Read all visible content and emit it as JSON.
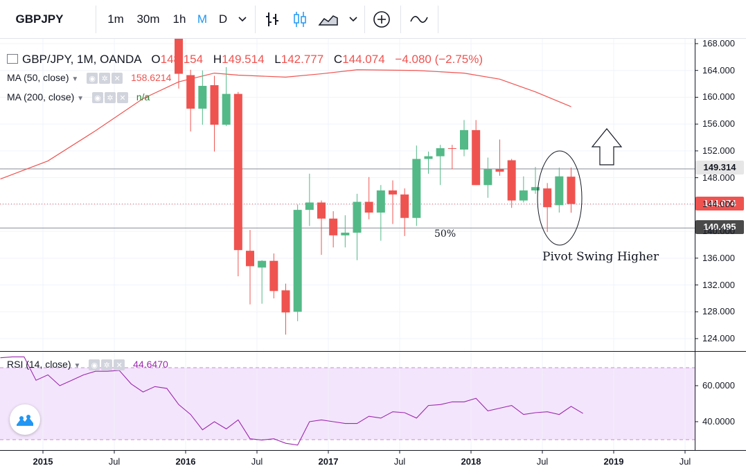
{
  "toolbar": {
    "symbol": "GBPJPY",
    "intervals": [
      "1m",
      "30m",
      "1h",
      "M",
      "D"
    ],
    "active_interval": "M"
  },
  "legend": {
    "title": "GBP/JPY, 1M, OANDA",
    "o_label": "O",
    "o_value": "148.154",
    "h_label": "H",
    "h_value": "149.514",
    "l_label": "L",
    "l_value": "142.777",
    "c_label": "C",
    "c_value": "144.074",
    "change": "−4.080 (−2.75%)",
    "ma50_label": "MA (50, close)",
    "ma50_value": "158.6214",
    "ma200_label": "MA (200, close)",
    "ma200_value": "n/a",
    "rsi_label": "RSI (14, close)",
    "rsi_value": "44.6470"
  },
  "price_labels": {
    "upper": "149.314",
    "current": "144.074",
    "lower": "140.495"
  },
  "annotations": {
    "fifty": "50%",
    "pivot": "Pivot Swing Higher"
  },
  "colors": {
    "up": "#26a69a",
    "up_fill": "#53b987",
    "down": "#ef5350",
    "ma50": "#ef5350",
    "rsi_line": "#9c27b0",
    "rsi_band": "#f3e5fb",
    "accent": "#2196f3"
  },
  "chart_data": {
    "type": "candlestick",
    "symbol": "GBP/JPY",
    "interval": "1M",
    "y_range": [
      122,
      169
    ],
    "price_ticks": [
      "168.000",
      "164.000",
      "160.000",
      "156.000",
      "152.000",
      "148.000",
      "144.000",
      "140.000",
      "136.000",
      "132.000",
      "128.000",
      "124.000"
    ],
    "x_tick_labels": [
      "2015",
      "Jul",
      "2016",
      "Jul",
      "2017",
      "Jul",
      "2018",
      "Jul",
      "2019",
      "Jul"
    ],
    "candles": [
      {
        "date": "2016-01",
        "o": 171.9,
        "h": 176.0,
        "l": 161.3,
        "c": 163.5
      },
      {
        "date": "2016-02",
        "o": 163.3,
        "h": 164.1,
        "l": 154.9,
        "c": 158.3
      },
      {
        "date": "2016-03",
        "o": 158.3,
        "h": 164.0,
        "l": 155.9,
        "c": 161.7
      },
      {
        "date": "2016-04",
        "o": 161.8,
        "h": 163.2,
        "l": 151.9,
        "c": 155.9
      },
      {
        "date": "2016-05",
        "o": 155.9,
        "h": 164.5,
        "l": 155.7,
        "c": 160.5
      },
      {
        "date": "2016-06",
        "o": 160.5,
        "h": 160.8,
        "l": 133.3,
        "c": 137.2
      },
      {
        "date": "2016-07",
        "o": 137.1,
        "h": 140.2,
        "l": 129.1,
        "c": 134.8
      },
      {
        "date": "2016-08",
        "o": 134.6,
        "h": 135.7,
        "l": 129.2,
        "c": 135.6
      },
      {
        "date": "2016-09",
        "o": 135.6,
        "h": 136.7,
        "l": 130.0,
        "c": 131.1
      },
      {
        "date": "2016-10",
        "o": 131.2,
        "h": 132.2,
        "l": 124.6,
        "c": 127.9
      },
      {
        "date": "2016-11",
        "o": 128.0,
        "h": 144.0,
        "l": 126.6,
        "c": 143.2
      },
      {
        "date": "2016-12",
        "o": 143.2,
        "h": 148.6,
        "l": 140.8,
        "c": 144.3
      },
      {
        "date": "2017-01",
        "o": 144.3,
        "h": 144.6,
        "l": 136.5,
        "c": 141.9
      },
      {
        "date": "2017-02",
        "o": 141.9,
        "h": 143.0,
        "l": 137.6,
        "c": 139.4
      },
      {
        "date": "2017-03",
        "o": 139.4,
        "h": 142.4,
        "l": 137.6,
        "c": 139.8
      },
      {
        "date": "2017-04",
        "o": 139.8,
        "h": 145.6,
        "l": 135.7,
        "c": 144.4
      },
      {
        "date": "2017-05",
        "o": 144.4,
        "h": 148.1,
        "l": 141.8,
        "c": 142.8
      },
      {
        "date": "2017-06",
        "o": 142.8,
        "h": 146.9,
        "l": 138.6,
        "c": 146.1
      },
      {
        "date": "2017-07",
        "o": 146.1,
        "h": 147.6,
        "l": 141.1,
        "c": 145.5
      },
      {
        "date": "2017-08",
        "o": 145.5,
        "h": 146.4,
        "l": 139.3,
        "c": 142.0
      },
      {
        "date": "2017-09",
        "o": 142.0,
        "h": 152.8,
        "l": 140.8,
        "c": 150.8
      },
      {
        "date": "2017-10",
        "o": 150.8,
        "h": 151.9,
        "l": 148.6,
        "c": 151.2
      },
      {
        "date": "2017-11",
        "o": 151.2,
        "h": 152.9,
        "l": 146.9,
        "c": 152.4
      },
      {
        "date": "2017-12",
        "o": 152.4,
        "h": 152.9,
        "l": 149.3,
        "c": 152.3
      },
      {
        "date": "2018-01",
        "o": 152.2,
        "h": 156.6,
        "l": 151.2,
        "c": 155.1
      },
      {
        "date": "2018-02",
        "o": 155.1,
        "h": 156.6,
        "l": 146.9,
        "c": 146.9
      },
      {
        "date": "2018-03",
        "o": 146.9,
        "h": 151.0,
        "l": 145.0,
        "c": 149.3
      },
      {
        "date": "2018-04",
        "o": 149.3,
        "h": 153.7,
        "l": 148.3,
        "c": 148.9
      },
      {
        "date": "2018-05",
        "o": 150.6,
        "h": 150.8,
        "l": 143.5,
        "c": 144.6
      },
      {
        "date": "2018-06",
        "o": 144.6,
        "h": 148.2,
        "l": 144.3,
        "c": 146.1
      },
      {
        "date": "2018-07",
        "o": 146.1,
        "h": 149.6,
        "l": 145.6,
        "c": 146.6
      },
      {
        "date": "2018-08",
        "o": 146.4,
        "h": 147.2,
        "l": 139.9,
        "c": 143.6
      },
      {
        "date": "2018-09",
        "o": 143.9,
        "h": 149.5,
        "l": 142.8,
        "c": 148.2
      },
      {
        "date": "2018-10",
        "o": 148.154,
        "h": 149.514,
        "l": 142.777,
        "c": 144.074
      }
    ],
    "ma50": {
      "name": "MA (50, close)",
      "points": [
        {
          "date": "2014-10",
          "v": 147.8
        },
        {
          "date": "2015-02",
          "v": 150.5
        },
        {
          "date": "2015-06",
          "v": 155.0
        },
        {
          "date": "2015-10",
          "v": 159.8
        },
        {
          "date": "2016-01",
          "v": 162.3
        },
        {
          "date": "2016-04",
          "v": 163.6
        },
        {
          "date": "2016-06",
          "v": 163.3
        },
        {
          "date": "2016-10",
          "v": 163.0
        },
        {
          "date": "2017-01",
          "v": 163.5
        },
        {
          "date": "2017-04",
          "v": 164.1
        },
        {
          "date": "2017-09",
          "v": 164.0
        },
        {
          "date": "2018-01",
          "v": 163.6
        },
        {
          "date": "2018-04",
          "v": 162.7
        },
        {
          "date": "2018-07",
          "v": 160.8
        },
        {
          "date": "2018-10",
          "v": 158.6
        }
      ]
    },
    "rsi": {
      "name": "RSI (14, close)",
      "y_range": [
        25,
        80
      ],
      "band": [
        30,
        70
      ],
      "ticks": [
        "60.0000",
        "40.0000"
      ],
      "points": [
        {
          "date": "2014-10",
          "v": 75.5
        },
        {
          "date": "2014-11",
          "v": 76.0
        },
        {
          "date": "2014-12",
          "v": 76.0
        },
        {
          "date": "2015-01",
          "v": 63.0
        },
        {
          "date": "2015-02",
          "v": 66.0
        },
        {
          "date": "2015-03",
          "v": 60.0
        },
        {
          "date": "2015-04",
          "v": 63.0
        },
        {
          "date": "2015-05",
          "v": 66.0
        },
        {
          "date": "2015-06",
          "v": 68.0
        },
        {
          "date": "2015-07",
          "v": 68.0
        },
        {
          "date": "2015-08",
          "v": 68.5
        },
        {
          "date": "2015-09",
          "v": 61.0
        },
        {
          "date": "2015-10",
          "v": 56.5
        },
        {
          "date": "2015-11",
          "v": 59.5
        },
        {
          "date": "2015-12",
          "v": 58.5
        },
        {
          "date": "2016-01",
          "v": 49.5
        },
        {
          "date": "2016-02",
          "v": 44.0
        },
        {
          "date": "2016-03",
          "v": 35.5
        },
        {
          "date": "2016-04",
          "v": 40.0
        },
        {
          "date": "2016-05",
          "v": 36.0
        },
        {
          "date": "2016-06",
          "v": 41.0
        },
        {
          "date": "2016-07",
          "v": 30.5
        },
        {
          "date": "2016-08",
          "v": 29.8
        },
        {
          "date": "2016-09",
          "v": 30.5
        },
        {
          "date": "2016-10",
          "v": 28.0
        },
        {
          "date": "2016-11",
          "v": 27.0
        },
        {
          "date": "2016-12",
          "v": 40.0
        },
        {
          "date": "2017-01",
          "v": 41.0
        },
        {
          "date": "2017-02",
          "v": 40.0
        },
        {
          "date": "2017-03",
          "v": 39.0
        },
        {
          "date": "2017-04",
          "v": 39.0
        },
        {
          "date": "2017-05",
          "v": 43.0
        },
        {
          "date": "2017-06",
          "v": 42.0
        },
        {
          "date": "2017-07",
          "v": 45.5
        },
        {
          "date": "2017-08",
          "v": 45.0
        },
        {
          "date": "2017-09",
          "v": 42.0
        },
        {
          "date": "2017-10",
          "v": 49.0
        },
        {
          "date": "2017-11",
          "v": 49.5
        },
        {
          "date": "2017-12",
          "v": 51.0
        },
        {
          "date": "2018-01",
          "v": 51.0
        },
        {
          "date": "2018-02",
          "v": 53.0
        },
        {
          "date": "2018-03",
          "v": 46.0
        },
        {
          "date": "2018-04",
          "v": 47.5
        },
        {
          "date": "2018-05",
          "v": 49.0
        },
        {
          "date": "2018-06",
          "v": 44.0
        },
        {
          "date": "2018-07",
          "v": 45.0
        },
        {
          "date": "2018-08",
          "v": 45.5
        },
        {
          "date": "2018-09",
          "v": 44.0
        },
        {
          "date": "2018-10",
          "v": 48.5
        },
        {
          "date": "2018-11",
          "v": 44.6
        }
      ]
    },
    "horizontal_lines": [
      149.314,
      140.495
    ],
    "current_price": 144.074
  }
}
